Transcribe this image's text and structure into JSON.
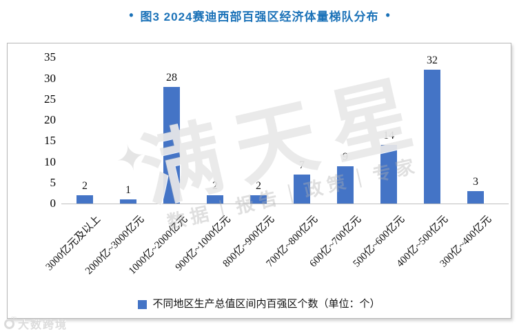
{
  "title": {
    "left_dot": "•",
    "text": "图3 2024赛迪西部百强区经济体量梯队分布",
    "right_dot": "•",
    "color": "#1b72b8"
  },
  "chart_data": {
    "type": "bar",
    "title": "图3 2024赛迪西部百强区经济体量梯队分布",
    "categories": [
      "3000亿元及以上",
      "2000亿~3000亿元",
      "1000亿~2000亿元",
      "900亿~1000亿元",
      "800亿~900亿元",
      "700亿~800亿元",
      "600亿~700亿元",
      "500亿~600亿元",
      "400亿~500亿元",
      "300亿~400亿元"
    ],
    "values": [
      2,
      1,
      28,
      2,
      2,
      7,
      9,
      14,
      32,
      3
    ],
    "xlabel": "",
    "ylabel": "",
    "ylim": [
      0,
      35
    ],
    "yticks": [
      0,
      5,
      10,
      15,
      20,
      25,
      30,
      35
    ],
    "grid": false,
    "legend_position": "bottom",
    "legend": "不同地区生产总值区间内百强区个数（单位：个）",
    "bar_color": "#4474c6",
    "axis_line_color": "#bfbfbf"
  },
  "legend": {
    "label": "不同地区生产总值区间内百强区个数（单位：个）"
  },
  "watermarks": {
    "star": "✦",
    "big_text": "满天星",
    "band_text": "数据｜报告｜政策｜专家",
    "site_name": "大数跨境"
  }
}
